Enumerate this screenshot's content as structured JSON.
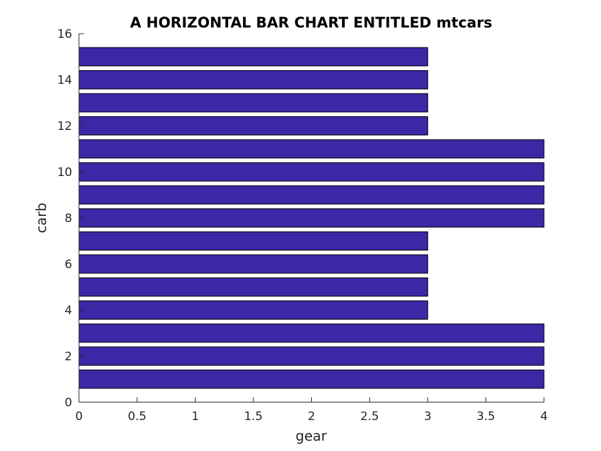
{
  "chart_data": {
    "type": "bar",
    "orientation": "horizontal",
    "title": "A HORIZONTAL BAR CHART ENTITLED mtcars",
    "xlabel": "gear",
    "ylabel": "carb",
    "xlim": [
      0,
      4
    ],
    "ylim": [
      0,
      16
    ],
    "x_ticks": [
      "0",
      "0.5",
      "1",
      "1.5",
      "2",
      "2.5",
      "3",
      "3.5",
      "4"
    ],
    "y_ticks": [
      "0",
      "2",
      "4",
      "6",
      "8",
      "10",
      "12",
      "14",
      "16"
    ],
    "grid": false,
    "bar_color": "#3b28a6",
    "categories": [
      1,
      2,
      3,
      4,
      5,
      6,
      7,
      8,
      9,
      10,
      11,
      12,
      13,
      14,
      15
    ],
    "values": [
      4,
      4,
      4,
      3,
      3,
      3,
      3,
      4,
      4,
      4,
      4,
      3,
      3,
      3,
      3
    ]
  }
}
